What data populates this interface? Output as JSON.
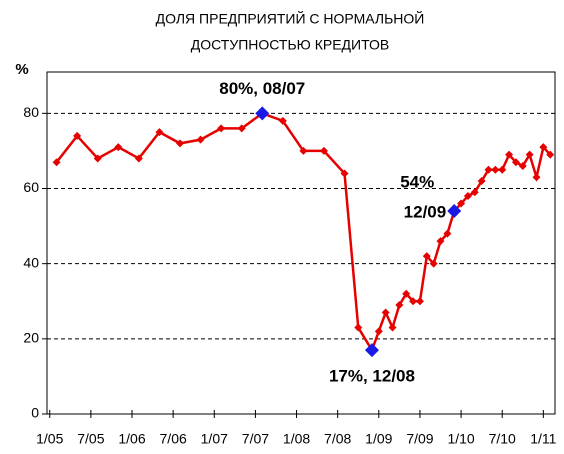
{
  "chart_data": {
    "type": "line",
    "title": [
      "ДОЛЯ ПРЕДПРИЯТИЙ С НОРМАЛЬНОЙ",
      "ДОСТУПНОСТЬЮ КРЕДИТОВ"
    ],
    "y_label": "%",
    "x": [
      1,
      4,
      7,
      10,
      13,
      16,
      19,
      22,
      25,
      28,
      31,
      34,
      37,
      40,
      43,
      45,
      47,
      48,
      49,
      50,
      51,
      52,
      53,
      54,
      55,
      56,
      57,
      58,
      59,
      60,
      61,
      62,
      63,
      64,
      65,
      66,
      67,
      68,
      69,
      70,
      71,
      72,
      73
    ],
    "series": [
      {
        "name": "Доля",
        "color": "#e60000",
        "values": [
          67,
          74,
          68,
          71,
          68,
          75,
          72,
          73,
          76,
          76,
          80,
          78,
          70,
          70,
          64,
          23,
          17,
          22,
          27,
          23,
          29,
          32,
          30,
          30,
          42,
          40,
          46,
          48,
          54,
          56,
          58,
          59,
          62,
          65,
          65,
          65,
          69,
          67,
          66,
          69,
          63,
          71,
          69
        ]
      }
    ],
    "highlight_color": "#1a1ae6",
    "annotations": [
      {
        "lines": [
          "80%, 08/07"
        ],
        "x": 31,
        "y": 80
      },
      {
        "lines": [
          "17%, 12/08"
        ],
        "x": 47,
        "y": 17
      },
      {
        "lines": [
          "54%",
          "12/09"
        ],
        "x": 59,
        "y": 54
      }
    ],
    "xlim": [
      -0.4,
      73.7
    ],
    "xticks": [
      {
        "value": 0,
        "label": "1/05"
      },
      {
        "value": 6,
        "label": "7/05"
      },
      {
        "value": 12,
        "label": "1/06"
      },
      {
        "value": 18,
        "label": "7/06"
      },
      {
        "value": 24,
        "label": "1/07"
      },
      {
        "value": 30,
        "label": "7/07"
      },
      {
        "value": 36,
        "label": "1/08"
      },
      {
        "value": 42,
        "label": "7/08"
      },
      {
        "value": 48,
        "label": "1/09"
      },
      {
        "value": 54,
        "label": "7/09"
      },
      {
        "value": 60,
        "label": "1/10"
      },
      {
        "value": 66,
        "label": "7/10"
      },
      {
        "value": 72,
        "label": "1/11"
      }
    ],
    "ylim": [
      0,
      91
    ],
    "yticks": [
      0,
      20,
      40,
      60,
      80
    ],
    "grid": true
  }
}
